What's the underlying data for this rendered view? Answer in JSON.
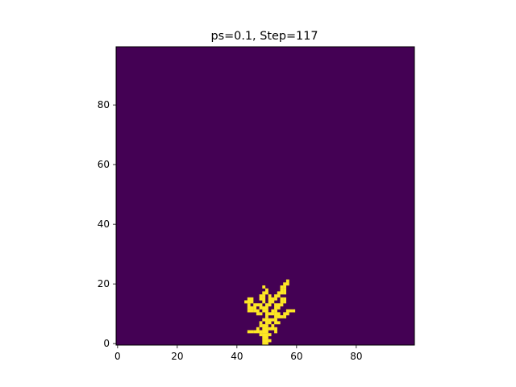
{
  "chart_data": {
    "type": "heatmap",
    "title": "ps=0.1, Step=117",
    "xlabel": "",
    "ylabel": "",
    "grid_size": [
      100,
      100
    ],
    "xlim": [
      -0.5,
      99.5
    ],
    "ylim": [
      -0.5,
      99.5
    ],
    "origin": "lower",
    "x_ticks": [
      0,
      20,
      40,
      60,
      80
    ],
    "y_ticks": [
      0,
      20,
      40,
      60,
      80
    ],
    "x_tick_labels": [
      "0",
      "20",
      "40",
      "60",
      "80"
    ],
    "y_tick_labels": [
      "0",
      "20",
      "40",
      "60",
      "80"
    ],
    "colors": {
      "empty": "#440154",
      "occupied": "#fde725"
    },
    "occupied_cells": [
      [
        49,
        0
      ],
      [
        50,
        0
      ],
      [
        49,
        1
      ],
      [
        50,
        1
      ],
      [
        51,
        1
      ],
      [
        49,
        2
      ],
      [
        50,
        2
      ],
      [
        48,
        3
      ],
      [
        49,
        3
      ],
      [
        50,
        3
      ],
      [
        51,
        3
      ],
      [
        44,
        4
      ],
      [
        45,
        4
      ],
      [
        46,
        4
      ],
      [
        47,
        4
      ],
      [
        48,
        4
      ],
      [
        49,
        4
      ],
      [
        50,
        4
      ],
      [
        53,
        4
      ],
      [
        47,
        5
      ],
      [
        49,
        5
      ],
      [
        50,
        5
      ],
      [
        51,
        5
      ],
      [
        52,
        5
      ],
      [
        53,
        5
      ],
      [
        48,
        6
      ],
      [
        49,
        6
      ],
      [
        50,
        6
      ],
      [
        52,
        6
      ],
      [
        48,
        7
      ],
      [
        50,
        7
      ],
      [
        51,
        7
      ],
      [
        53,
        7
      ],
      [
        54,
        7
      ],
      [
        49,
        8
      ],
      [
        50,
        8
      ],
      [
        51,
        8
      ],
      [
        52,
        8
      ],
      [
        53,
        8
      ],
      [
        50,
        9
      ],
      [
        53,
        9
      ],
      [
        54,
        9
      ],
      [
        55,
        9
      ],
      [
        56,
        9
      ],
      [
        47,
        10
      ],
      [
        48,
        10
      ],
      [
        50,
        10
      ],
      [
        51,
        10
      ],
      [
        52,
        10
      ],
      [
        53,
        10
      ],
      [
        54,
        10
      ],
      [
        56,
        10
      ],
      [
        57,
        10
      ],
      [
        44,
        11
      ],
      [
        45,
        11
      ],
      [
        46,
        11
      ],
      [
        47,
        11
      ],
      [
        49,
        11
      ],
      [
        50,
        11
      ],
      [
        52,
        11
      ],
      [
        53,
        11
      ],
      [
        57,
        11
      ],
      [
        58,
        11
      ],
      [
        59,
        11
      ],
      [
        44,
        12
      ],
      [
        45,
        12
      ],
      [
        46,
        12
      ],
      [
        48,
        12
      ],
      [
        49,
        12
      ],
      [
        50,
        12
      ],
      [
        53,
        12
      ],
      [
        54,
        12
      ],
      [
        44,
        13
      ],
      [
        46,
        13
      ],
      [
        47,
        13
      ],
      [
        48,
        13
      ],
      [
        50,
        13
      ],
      [
        51,
        13
      ],
      [
        53,
        13
      ],
      [
        54,
        13
      ],
      [
        55,
        13
      ],
      [
        43,
        14
      ],
      [
        44,
        14
      ],
      [
        45,
        14
      ],
      [
        49,
        14
      ],
      [
        51,
        14
      ],
      [
        52,
        14
      ],
      [
        55,
        14
      ],
      [
        56,
        14
      ],
      [
        44,
        15
      ],
      [
        45,
        15
      ],
      [
        48,
        15
      ],
      [
        49,
        15
      ],
      [
        51,
        15
      ],
      [
        52,
        15
      ],
      [
        53,
        15
      ],
      [
        55,
        15
      ],
      [
        56,
        15
      ],
      [
        48,
        16
      ],
      [
        49,
        16
      ],
      [
        51,
        16
      ],
      [
        53,
        16
      ],
      [
        54,
        16
      ],
      [
        49,
        17
      ],
      [
        50,
        17
      ],
      [
        54,
        17
      ],
      [
        55,
        17
      ],
      [
        56,
        17
      ],
      [
        50,
        18
      ],
      [
        55,
        18
      ],
      [
        56,
        18
      ],
      [
        49,
        19
      ],
      [
        55,
        19
      ],
      [
        56,
        19
      ],
      [
        56,
        20
      ],
      [
        57,
        20
      ],
      [
        57,
        21
      ]
    ]
  }
}
